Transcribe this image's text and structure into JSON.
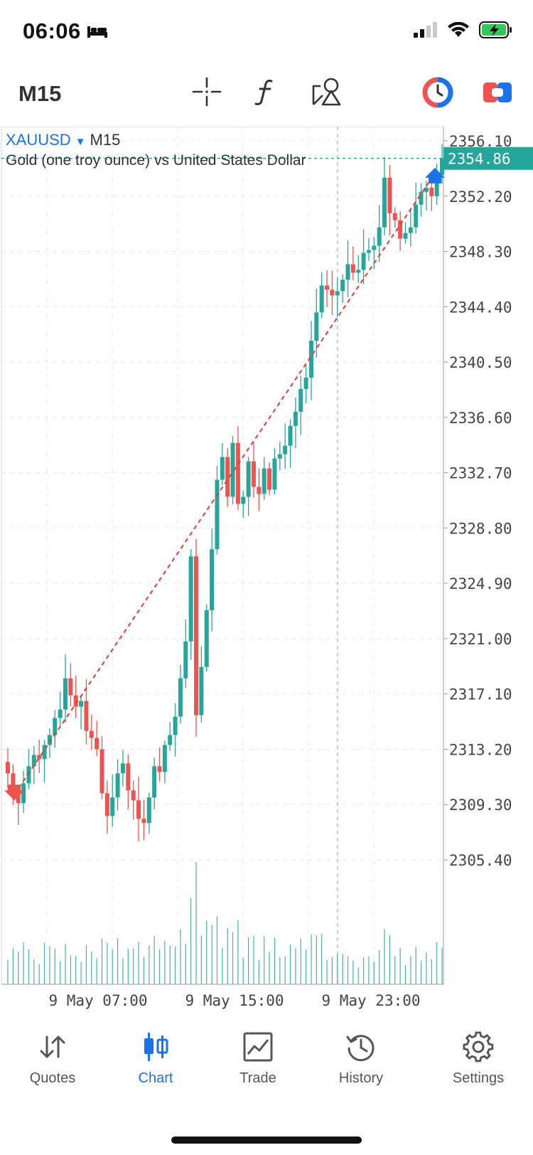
{
  "status_bar": {
    "time": "06:06",
    "icons": [
      "bed-icon",
      "signal-icon",
      "wifi-icon",
      "battery-charging-icon"
    ]
  },
  "toolbar": {
    "timeframe": "M15",
    "icons": [
      "crosshair-icon",
      "indicators-icon",
      "objects-icon",
      "one-click-trading-icon",
      "trade-panel-icon"
    ]
  },
  "symbol": {
    "name": "XAUUSD",
    "timeframe": "M15",
    "description": "Gold (one troy ounce) vs United States Dollar"
  },
  "current_price": "2354.86",
  "colors": {
    "bull": "#26a69a",
    "bear": "#ef5350",
    "accent": "#1a73e8",
    "price_tag": "#26a69a",
    "trendline": "#e53935"
  },
  "chart_data": {
    "type": "candlestick",
    "symbol": "XAUUSD",
    "timeframe": "M15",
    "y_ticks": [
      "2356.10",
      "2352.20",
      "2348.30",
      "2344.40",
      "2340.50",
      "2336.60",
      "2332.70",
      "2328.80",
      "2324.90",
      "2321.00",
      "2317.10",
      "2313.20",
      "2309.30",
      "2305.40"
    ],
    "x_ticks": [
      "9 May 07:00",
      "9 May 15:00",
      "9 May 23:00"
    ],
    "ylim": [
      2305.4,
      2356.1
    ],
    "grid": true,
    "last_price": 2354.86,
    "close": [
      2311.5,
      2310.2,
      2309.4,
      2310.8,
      2312.0,
      2312.8,
      2312.5,
      2313.5,
      2314.2,
      2315.4,
      2316.0,
      2318.2,
      2317.0,
      2316.2,
      2316.6,
      2314.5,
      2314.0,
      2313.2,
      2310.1,
      2308.5,
      2309.8,
      2311.5,
      2312.2,
      2310.3,
      2309.6,
      2308.3,
      2308.0,
      2309.8,
      2312.0,
      2311.6,
      2313.5,
      2314.2,
      2315.5,
      2318.2,
      2320.8,
      2326.8,
      2315.6,
      2319.0,
      2323.0,
      2327.3,
      2332.2,
      2333.8,
      2331.0,
      2334.8,
      2330.5,
      2331.0,
      2333.5,
      2331.7,
      2331.2,
      2333.0,
      2331.5,
      2333.7,
      2334.0,
      2334.6,
      2336.0,
      2337.0,
      2338.6,
      2339.4,
      2342.0,
      2344.0,
      2345.9,
      2345.6,
      2345.2,
      2345.5,
      2346.3,
      2347.4,
      2346.8,
      2347.0,
      2348.2,
      2348.4,
      2348.7,
      2350.0,
      2353.5,
      2351.0,
      2350.5,
      2349.2,
      2349.6,
      2350.0,
      2351.6,
      2352.5,
      2352.8,
      2352.2,
      2353.7,
      2354.86
    ],
    "volume_ticks_shown": false,
    "markers": [
      {
        "type": "sell",
        "price": 2310.0
      },
      {
        "type": "buy",
        "price": 2353.8
      }
    ]
  },
  "tabs": [
    {
      "label": "Quotes",
      "icon": "quotes-icon",
      "active": false
    },
    {
      "label": "Chart",
      "icon": "chart-icon",
      "active": true
    },
    {
      "label": "Trade",
      "icon": "trade-icon",
      "active": false
    },
    {
      "label": "History",
      "icon": "history-icon",
      "active": false
    },
    {
      "label": "Settings",
      "icon": "settings-icon",
      "active": false
    }
  ]
}
